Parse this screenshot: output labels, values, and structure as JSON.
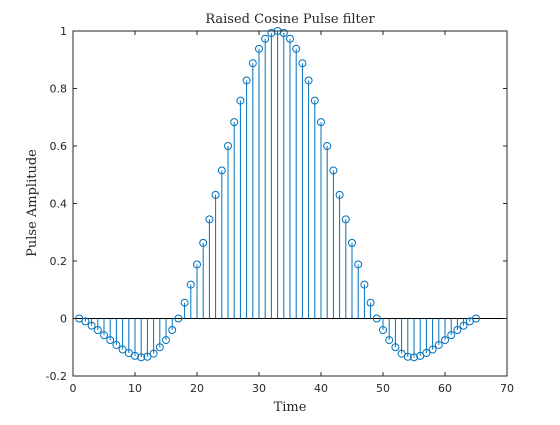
{
  "chart_data": {
    "type": "stem",
    "title": "Raised Cosine Pulse filter",
    "xlabel": "Time",
    "ylabel": "Pulse Amplitude",
    "xlim": [
      0,
      70
    ],
    "ylim": [
      -0.2,
      1
    ],
    "xticks": [
      0,
      10,
      20,
      30,
      40,
      50,
      60,
      70
    ],
    "yticks": [
      -0.2,
      0,
      0.2,
      0.4,
      0.6,
      0.8,
      1
    ],
    "grid": false,
    "series_color": "#0072BD",
    "series": [
      {
        "x": [
          1,
          2,
          3,
          4,
          5,
          6,
          7,
          8,
          9,
          10,
          11,
          12,
          13,
          14,
          15,
          16,
          17,
          18,
          19,
          20,
          21,
          22,
          23,
          24,
          25,
          26,
          27,
          28,
          29,
          30,
          31,
          32,
          33,
          34,
          35,
          36,
          37,
          38,
          39,
          40,
          41,
          42,
          43,
          44,
          45,
          46,
          47,
          48,
          49,
          50,
          51,
          52,
          53,
          54,
          55,
          56,
          57,
          58,
          59,
          60,
          61,
          62,
          63,
          64,
          65
        ],
        "y": [
          0,
          -0.01,
          -0.025,
          -0.04,
          -0.058,
          -0.075,
          -0.092,
          -0.108,
          -0.12,
          -0.13,
          -0.135,
          -0.133,
          -0.122,
          -0.1,
          -0.075,
          -0.04,
          0,
          0.055,
          0.118,
          0.188,
          0.263,
          0.345,
          0.43,
          0.515,
          0.6,
          0.683,
          0.758,
          0.828,
          0.888,
          0.938,
          0.973,
          0.993,
          1,
          0.993,
          0.973,
          0.938,
          0.888,
          0.828,
          0.758,
          0.683,
          0.6,
          0.515,
          0.43,
          0.345,
          0.263,
          0.188,
          0.118,
          0.055,
          0,
          -0.04,
          -0.075,
          -0.1,
          -0.122,
          -0.133,
          -0.135,
          -0.13,
          -0.12,
          -0.108,
          -0.092,
          -0.075,
          -0.058,
          -0.04,
          -0.025,
          -0.01,
          0
        ]
      }
    ]
  }
}
